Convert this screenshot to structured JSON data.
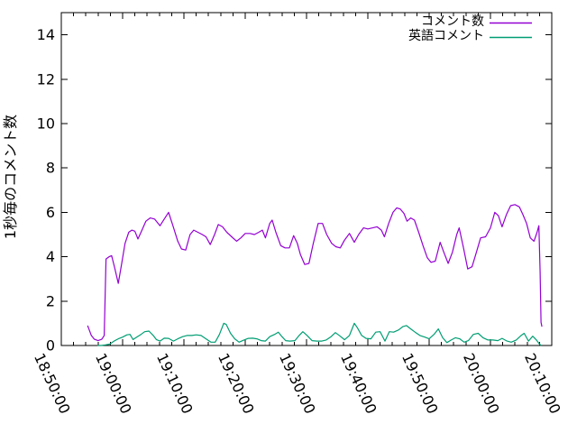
{
  "chart_data": {
    "type": "line",
    "title": "",
    "xlabel": "",
    "ylabel": "1秒毎のコメント数",
    "x_tick_labels": [
      "18:50:00",
      "19:00:00",
      "19:10:00",
      "19:20:00",
      "19:30:00",
      "19:40:00",
      "19:50:00",
      "20:00:00",
      "20:10:00"
    ],
    "x_axis_minutes_range": [
      0,
      80
    ],
    "x_major_tick_minutes": 10,
    "x_minor_tick_minutes": 2,
    "y_ticks": [
      0,
      2,
      4,
      6,
      8,
      10,
      12,
      14
    ],
    "ylim": [
      0,
      15
    ],
    "grid": false,
    "legend": {
      "position": "top-right-inside",
      "entries": [
        "コメント数",
        "英語コメント"
      ]
    },
    "series": [
      {
        "name": "コメント数",
        "color": "#9400d3",
        "points": [
          [
            4.3,
            0.9
          ],
          [
            4.9,
            0.45
          ],
          [
            5.4,
            0.28
          ],
          [
            6.0,
            0.22
          ],
          [
            6.6,
            0.28
          ],
          [
            7.0,
            0.45
          ],
          [
            7.3,
            3.9
          ],
          [
            7.8,
            4.0
          ],
          [
            8.2,
            4.05
          ],
          [
            8.7,
            3.5
          ],
          [
            9.3,
            2.8
          ],
          [
            9.8,
            3.6
          ],
          [
            10.4,
            4.6
          ],
          [
            11.0,
            5.1
          ],
          [
            11.5,
            5.2
          ],
          [
            12.0,
            5.15
          ],
          [
            12.5,
            4.8
          ],
          [
            13.0,
            5.1
          ],
          [
            13.8,
            5.6
          ],
          [
            14.5,
            5.75
          ],
          [
            15.2,
            5.7
          ],
          [
            16.1,
            5.4
          ],
          [
            16.8,
            5.7
          ],
          [
            17.5,
            6.0
          ],
          [
            18.2,
            5.4
          ],
          [
            19.0,
            4.7
          ],
          [
            19.6,
            4.35
          ],
          [
            20.3,
            4.3
          ],
          [
            21.0,
            5.0
          ],
          [
            21.6,
            5.2
          ],
          [
            22.3,
            5.1
          ],
          [
            23.0,
            5.0
          ],
          [
            23.6,
            4.9
          ],
          [
            24.3,
            4.55
          ],
          [
            25.0,
            5.0
          ],
          [
            25.6,
            5.45
          ],
          [
            26.3,
            5.35
          ],
          [
            27.0,
            5.1
          ],
          [
            27.8,
            4.9
          ],
          [
            28.6,
            4.7
          ],
          [
            29.3,
            4.85
          ],
          [
            30.0,
            5.05
          ],
          [
            30.8,
            5.05
          ],
          [
            31.5,
            5.0
          ],
          [
            32.2,
            5.1
          ],
          [
            32.8,
            5.2
          ],
          [
            33.3,
            4.85
          ],
          [
            34.0,
            5.5
          ],
          [
            34.4,
            5.65
          ],
          [
            35.0,
            5.1
          ],
          [
            35.8,
            4.5
          ],
          [
            36.5,
            4.4
          ],
          [
            37.2,
            4.4
          ],
          [
            37.9,
            4.95
          ],
          [
            38.5,
            4.6
          ],
          [
            39.0,
            4.1
          ],
          [
            39.7,
            3.65
          ],
          [
            40.4,
            3.7
          ],
          [
            41.1,
            4.6
          ],
          [
            41.9,
            5.5
          ],
          [
            42.6,
            5.5
          ],
          [
            43.3,
            5.0
          ],
          [
            44.1,
            4.6
          ],
          [
            44.8,
            4.45
          ],
          [
            45.5,
            4.4
          ],
          [
            46.2,
            4.75
          ],
          [
            47.0,
            5.05
          ],
          [
            47.8,
            4.65
          ],
          [
            48.5,
            5.0
          ],
          [
            49.3,
            5.3
          ],
          [
            50.0,
            5.25
          ],
          [
            50.8,
            5.3
          ],
          [
            51.5,
            5.35
          ],
          [
            52.2,
            5.2
          ],
          [
            52.7,
            4.9
          ],
          [
            53.4,
            5.5
          ],
          [
            54.1,
            6.0
          ],
          [
            54.7,
            6.2
          ],
          [
            55.3,
            6.15
          ],
          [
            55.9,
            5.95
          ],
          [
            56.4,
            5.6
          ],
          [
            57.0,
            5.75
          ],
          [
            57.6,
            5.65
          ],
          [
            58.3,
            5.1
          ],
          [
            59.0,
            4.5
          ],
          [
            59.7,
            3.95
          ],
          [
            60.3,
            3.75
          ],
          [
            61.0,
            3.8
          ],
          [
            61.8,
            4.65
          ],
          [
            62.4,
            4.2
          ],
          [
            63.1,
            3.7
          ],
          [
            63.8,
            4.2
          ],
          [
            64.5,
            5.0
          ],
          [
            64.9,
            5.3
          ],
          [
            65.6,
            4.4
          ],
          [
            66.3,
            3.45
          ],
          [
            67.0,
            3.55
          ],
          [
            67.7,
            4.2
          ],
          [
            68.4,
            4.85
          ],
          [
            69.2,
            4.9
          ],
          [
            70.0,
            5.3
          ],
          [
            70.7,
            6.0
          ],
          [
            71.3,
            5.85
          ],
          [
            71.9,
            5.35
          ],
          [
            72.6,
            5.9
          ],
          [
            73.3,
            6.3
          ],
          [
            74.0,
            6.35
          ],
          [
            74.7,
            6.25
          ],
          [
            75.3,
            5.9
          ],
          [
            75.9,
            5.5
          ],
          [
            76.5,
            4.85
          ],
          [
            77.1,
            4.7
          ],
          [
            77.6,
            5.1
          ],
          [
            77.9,
            5.4
          ],
          [
            78.1,
            3.3
          ],
          [
            78.25,
            1.05
          ],
          [
            78.4,
            0.85
          ]
        ]
      },
      {
        "name": "英語コメント",
        "color": "#009e73",
        "points": [
          [
            5.9,
            0.0
          ],
          [
            6.5,
            0.0
          ],
          [
            7.2,
            0.03
          ],
          [
            7.9,
            0.06
          ],
          [
            8.6,
            0.2
          ],
          [
            9.3,
            0.3
          ],
          [
            10.0,
            0.38
          ],
          [
            10.7,
            0.48
          ],
          [
            11.2,
            0.5
          ],
          [
            11.7,
            0.27
          ],
          [
            12.3,
            0.38
          ],
          [
            13.0,
            0.5
          ],
          [
            13.6,
            0.62
          ],
          [
            14.3,
            0.65
          ],
          [
            15.0,
            0.45
          ],
          [
            15.5,
            0.27
          ],
          [
            16.1,
            0.2
          ],
          [
            16.8,
            0.33
          ],
          [
            17.5,
            0.32
          ],
          [
            18.3,
            0.2
          ],
          [
            19.0,
            0.3
          ],
          [
            19.8,
            0.4
          ],
          [
            20.5,
            0.45
          ],
          [
            21.3,
            0.45
          ],
          [
            22.0,
            0.48
          ],
          [
            22.8,
            0.45
          ],
          [
            23.6,
            0.3
          ],
          [
            24.4,
            0.15
          ],
          [
            25.1,
            0.15
          ],
          [
            25.8,
            0.5
          ],
          [
            26.5,
            1.0
          ],
          [
            26.9,
            0.95
          ],
          [
            27.6,
            0.55
          ],
          [
            28.3,
            0.3
          ],
          [
            29.0,
            0.15
          ],
          [
            29.8,
            0.25
          ],
          [
            30.5,
            0.32
          ],
          [
            31.2,
            0.33
          ],
          [
            31.9,
            0.3
          ],
          [
            32.6,
            0.22
          ],
          [
            33.3,
            0.2
          ],
          [
            34.0,
            0.4
          ],
          [
            34.8,
            0.5
          ],
          [
            35.4,
            0.6
          ],
          [
            36.0,
            0.4
          ],
          [
            36.6,
            0.22
          ],
          [
            37.3,
            0.2
          ],
          [
            38.1,
            0.22
          ],
          [
            38.8,
            0.45
          ],
          [
            39.4,
            0.62
          ],
          [
            40.1,
            0.45
          ],
          [
            40.9,
            0.22
          ],
          [
            41.7,
            0.2
          ],
          [
            42.5,
            0.2
          ],
          [
            43.2,
            0.25
          ],
          [
            44.0,
            0.4
          ],
          [
            44.7,
            0.58
          ],
          [
            45.5,
            0.42
          ],
          [
            46.2,
            0.26
          ],
          [
            47.0,
            0.45
          ],
          [
            47.8,
            1.0
          ],
          [
            48.3,
            0.8
          ],
          [
            49.0,
            0.45
          ],
          [
            49.7,
            0.32
          ],
          [
            50.5,
            0.3
          ],
          [
            51.3,
            0.6
          ],
          [
            52.0,
            0.62
          ],
          [
            52.8,
            0.2
          ],
          [
            53.5,
            0.62
          ],
          [
            54.2,
            0.6
          ],
          [
            55.0,
            0.7
          ],
          [
            55.7,
            0.85
          ],
          [
            56.3,
            0.9
          ],
          [
            57.0,
            0.75
          ],
          [
            57.7,
            0.6
          ],
          [
            58.5,
            0.45
          ],
          [
            59.3,
            0.38
          ],
          [
            60.0,
            0.3
          ],
          [
            60.8,
            0.5
          ],
          [
            61.5,
            0.75
          ],
          [
            62.2,
            0.35
          ],
          [
            62.9,
            0.13
          ],
          [
            63.6,
            0.25
          ],
          [
            64.3,
            0.35
          ],
          [
            65.0,
            0.3
          ],
          [
            65.7,
            0.15
          ],
          [
            66.4,
            0.22
          ],
          [
            67.2,
            0.5
          ],
          [
            68.0,
            0.55
          ],
          [
            68.8,
            0.35
          ],
          [
            69.6,
            0.25
          ],
          [
            70.4,
            0.25
          ],
          [
            71.2,
            0.22
          ],
          [
            71.9,
            0.32
          ],
          [
            72.7,
            0.2
          ],
          [
            73.4,
            0.15
          ],
          [
            74.2,
            0.25
          ],
          [
            75.0,
            0.45
          ],
          [
            75.5,
            0.55
          ],
          [
            76.2,
            0.2
          ],
          [
            76.9,
            0.42
          ],
          [
            77.5,
            0.25
          ],
          [
            78.0,
            0.06
          ],
          [
            78.3,
            0.0
          ]
        ]
      }
    ]
  }
}
